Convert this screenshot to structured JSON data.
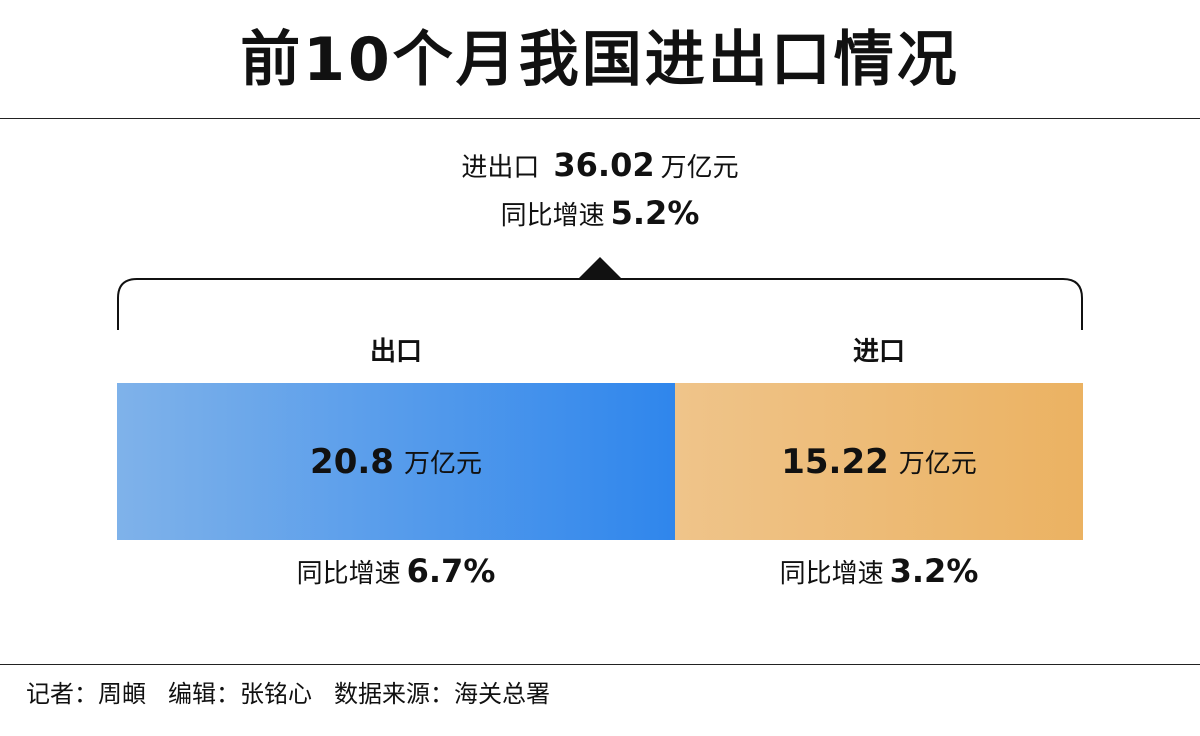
{
  "title": "前10个月我国进出口情况",
  "total": {
    "label": "进出口",
    "value": "36.02",
    "unit": "万亿元",
    "growth_label": "同比增速",
    "growth": "5.2%"
  },
  "footer": {
    "reporter": "记者：周頔",
    "editor": "编辑：张铭心",
    "source": "数据来源：海关总署"
  },
  "colors": {
    "export_start": "#7fb2ea",
    "export_end": "#2f86ec",
    "import_start": "#efc48a",
    "import_end": "#ebb262",
    "text": "#111111"
  },
  "chart_data": {
    "type": "bar",
    "orientation": "horizontal-stacked",
    "unit": "万亿元",
    "growth_label": "同比增速",
    "categories": [
      "出口",
      "进口"
    ],
    "values": [
      20.8,
      15.22
    ],
    "value_labels": [
      "20.8",
      "15.22"
    ],
    "growth": [
      "6.7%",
      "3.2%"
    ],
    "total": 36.02
  }
}
